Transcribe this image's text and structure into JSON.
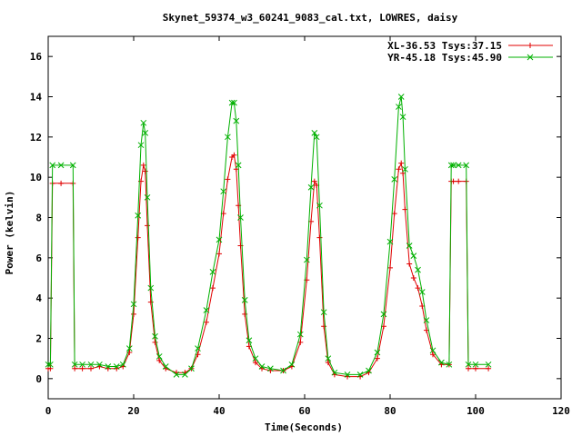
{
  "chart_data": {
    "type": "line",
    "title": "Skynet_59374_w3_60241_9083_cal.txt, LOWRES, daisy",
    "xlabel": "Time(Seconds)",
    "ylabel": "Power (kelvin)",
    "xlim": [
      0,
      120
    ],
    "ylim": [
      -1,
      17
    ],
    "xticks": [
      0,
      20,
      40,
      60,
      80,
      100,
      120
    ],
    "yticks": [
      0,
      2,
      4,
      6,
      8,
      10,
      12,
      14,
      16
    ],
    "grid": false,
    "legend_position": "top-right",
    "series": [
      {
        "name": "XL-36.53 Tsys:37.15",
        "color": "#e00000",
        "marker": "plus",
        "x": [
          0,
          0.5,
          1,
          3,
          5.8,
          6.2,
          8,
          10,
          12,
          14,
          16,
          17.5,
          19,
          20,
          21,
          21.7,
          22.3,
          22.7,
          23.2,
          24,
          25,
          26,
          27.5,
          30,
          32,
          33.5,
          35,
          37,
          38.5,
          40,
          41,
          42,
          43,
          43.5,
          44,
          44.5,
          45,
          46,
          47,
          48.5,
          50,
          52,
          55,
          57,
          59,
          60.5,
          61.5,
          62.3,
          62.8,
          63.5,
          64.5,
          65.5,
          67,
          70,
          73,
          75,
          77,
          78.5,
          80,
          81,
          82,
          82.6,
          83,
          83.5,
          84.5,
          85.5,
          86.5,
          87.5,
          88.5,
          90,
          92,
          93.8,
          94.3,
          94.8,
          96,
          97.8,
          98.3,
          100,
          103
        ],
        "y": [
          0.5,
          0.5,
          9.7,
          9.7,
          9.7,
          0.5,
          0.5,
          0.5,
          0.6,
          0.5,
          0.5,
          0.6,
          1.3,
          3.2,
          7.0,
          9.8,
          10.6,
          10.3,
          7.6,
          3.8,
          1.8,
          0.9,
          0.5,
          0.3,
          0.3,
          0.5,
          1.2,
          2.8,
          4.5,
          6.2,
          8.2,
          9.9,
          11.0,
          11.1,
          10.4,
          8.6,
          6.6,
          3.2,
          1.6,
          0.8,
          0.5,
          0.4,
          0.4,
          0.6,
          1.8,
          4.9,
          7.8,
          9.8,
          9.6,
          7.0,
          2.6,
          0.8,
          0.2,
          0.1,
          0.1,
          0.3,
          1.0,
          2.6,
          5.5,
          8.2,
          10.4,
          10.7,
          10.2,
          8.4,
          5.7,
          5.0,
          4.5,
          3.6,
          2.4,
          1.2,
          0.7,
          0.7,
          9.8,
          9.8,
          9.8,
          9.8,
          0.5,
          0.5,
          0.5
        ]
      },
      {
        "name": "YR-45.18 Tsys:45.90",
        "color": "#00b000",
        "marker": "x",
        "x": [
          0,
          0.5,
          1,
          3,
          5.8,
          6.2,
          8,
          10,
          12,
          14,
          16,
          17.5,
          19,
          20,
          21,
          21.7,
          22.3,
          22.7,
          23.2,
          24,
          25,
          26,
          27.5,
          30,
          32,
          33.5,
          35,
          37,
          38.5,
          40,
          41,
          42,
          43,
          43.5,
          44,
          44.5,
          45,
          46,
          47,
          48.5,
          50,
          52,
          55,
          57,
          59,
          60.5,
          61.5,
          62.3,
          62.8,
          63.5,
          64.5,
          65.5,
          67,
          70,
          73,
          75,
          77,
          78.5,
          80,
          81,
          82,
          82.6,
          83,
          83.5,
          84.5,
          85.5,
          86.5,
          87.5,
          88.5,
          90,
          92,
          93.8,
          94.3,
          94.8,
          96,
          97.8,
          98.3,
          100,
          103
        ],
        "y": [
          0.7,
          0.7,
          10.6,
          10.6,
          10.6,
          0.7,
          0.7,
          0.7,
          0.7,
          0.6,
          0.6,
          0.7,
          1.5,
          3.7,
          8.1,
          11.6,
          12.7,
          12.2,
          9.0,
          4.5,
          2.1,
          1.1,
          0.6,
          0.2,
          0.2,
          0.5,
          1.5,
          3.4,
          5.3,
          6.9,
          9.3,
          12.0,
          13.7,
          13.7,
          12.8,
          10.6,
          8.0,
          3.9,
          1.9,
          1.0,
          0.6,
          0.5,
          0.4,
          0.7,
          2.2,
          5.9,
          9.5,
          12.2,
          12.0,
          8.6,
          3.3,
          1.0,
          0.3,
          0.2,
          0.2,
          0.4,
          1.3,
          3.2,
          6.8,
          9.9,
          13.5,
          14.0,
          13.0,
          10.4,
          6.6,
          6.1,
          5.4,
          4.3,
          2.9,
          1.4,
          0.8,
          0.7,
          10.6,
          10.6,
          10.6,
          10.6,
          0.7,
          0.7,
          0.7
        ]
      }
    ]
  }
}
